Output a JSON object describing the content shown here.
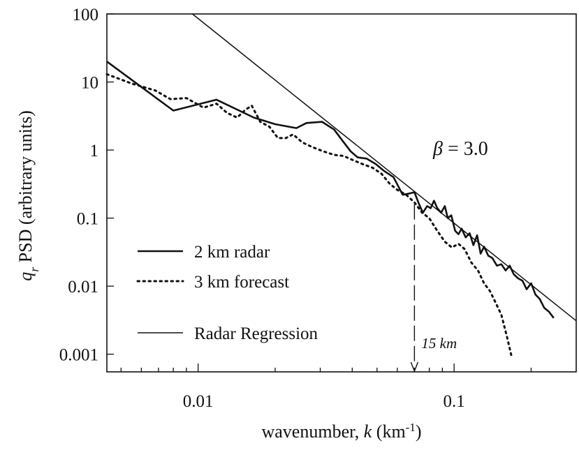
{
  "chart_data": {
    "type": "line",
    "title": "",
    "xlabel": "wavenumber, k (km-1)",
    "xlabel_parts": {
      "prefix": "wavenumber, ",
      "var": "k",
      "unit_open": " (km",
      "unit_sup": "-1",
      "unit_close": ")"
    },
    "ylabel": "qr PSD (arbitrary units)",
    "ylabel_parts": {
      "var": "q",
      "sub": "r",
      "rest": " PSD (arbitrary units)"
    },
    "x_scale": "log",
    "y_scale": "log",
    "xlim": [
      0.0044,
      0.3
    ],
    "ylim": [
      0.00055,
      100
    ],
    "x_ticks": [
      {
        "value": 0.01,
        "label": "0.01"
      },
      {
        "value": 0.1,
        "label": "0.1"
      }
    ],
    "y_ticks": [
      {
        "value": 100,
        "label": "100"
      },
      {
        "value": 10,
        "label": "10"
      },
      {
        "value": 1,
        "label": "1"
      },
      {
        "value": 0.1,
        "label": "0.1"
      },
      {
        "value": 0.01,
        "label": "0.01"
      },
      {
        "value": 0.001,
        "label": "0.001"
      }
    ],
    "grid": false,
    "legend_position": "lower-left",
    "series": [
      {
        "name": "2 km radar",
        "style": "thick-solid",
        "x": [
          0.0044,
          0.008,
          0.0118,
          0.0165,
          0.02,
          0.0242,
          0.0265,
          0.0305,
          0.034,
          0.0365,
          0.0395,
          0.042,
          0.0455,
          0.0495,
          0.053,
          0.058,
          0.063,
          0.067,
          0.07,
          0.0725,
          0.0755,
          0.0785,
          0.081,
          0.0835,
          0.086,
          0.089,
          0.092,
          0.0945,
          0.0975,
          0.101,
          0.104,
          0.107,
          0.111,
          0.115,
          0.119,
          0.123,
          0.127,
          0.131,
          0.136,
          0.141,
          0.147,
          0.153,
          0.159,
          0.165,
          0.171,
          0.178,
          0.185,
          0.192,
          0.2,
          0.208,
          0.216,
          0.225,
          0.235,
          0.245
        ],
        "y": [
          20,
          3.8,
          5.5,
          3.0,
          2.4,
          2.1,
          2.5,
          2.6,
          2.0,
          1.4,
          0.95,
          0.78,
          0.75,
          0.62,
          0.5,
          0.4,
          0.22,
          0.23,
          0.24,
          0.17,
          0.12,
          0.15,
          0.14,
          0.18,
          0.14,
          0.12,
          0.15,
          0.1,
          0.11,
          0.065,
          0.058,
          0.07,
          0.052,
          0.06,
          0.04,
          0.056,
          0.03,
          0.038,
          0.028,
          0.026,
          0.02,
          0.021,
          0.017,
          0.02,
          0.015,
          0.013,
          0.012,
          0.009,
          0.011,
          0.0075,
          0.0065,
          0.0048,
          0.0042,
          0.0034
        ]
      },
      {
        "name": "3 km forecast",
        "style": "dotted",
        "x": [
          0.0044,
          0.0055,
          0.0068,
          0.0078,
          0.009,
          0.0105,
          0.0118,
          0.013,
          0.0142,
          0.0153,
          0.0162,
          0.0175,
          0.019,
          0.0205,
          0.022,
          0.0235,
          0.0255,
          0.028,
          0.031,
          0.034,
          0.037,
          0.04,
          0.044,
          0.048,
          0.052,
          0.056,
          0.06,
          0.065,
          0.07,
          0.075,
          0.08,
          0.086,
          0.092,
          0.098,
          0.104,
          0.11,
          0.117,
          0.124,
          0.131,
          0.138,
          0.145,
          0.153,
          0.161,
          0.168
        ],
        "y": [
          13,
          9.5,
          7.5,
          5.6,
          5.8,
          4.2,
          4.8,
          3.5,
          3.0,
          3.9,
          4.5,
          2.6,
          2.2,
          1.5,
          1.5,
          1.7,
          1.3,
          1.1,
          0.95,
          0.85,
          0.82,
          0.72,
          0.62,
          0.55,
          0.45,
          0.32,
          0.26,
          0.22,
          0.17,
          0.12,
          0.1,
          0.065,
          0.045,
          0.037,
          0.042,
          0.035,
          0.022,
          0.017,
          0.011,
          0.0085,
          0.0058,
          0.0038,
          0.0018,
          0.0009
        ]
      },
      {
        "name": "Radar Regression",
        "style": "thin-solid",
        "x": [
          0.0095,
          0.3
        ],
        "y": [
          100,
          0.0031
        ]
      }
    ],
    "legend": [
      {
        "label": "2 km radar",
        "style": "thick-solid"
      },
      {
        "label": "3 km forecast",
        "style": "dotted"
      },
      {
        "label": "Radar Regression",
        "style": "thin-solid"
      }
    ],
    "annotations": {
      "beta": {
        "symbol": "β",
        "text": " = 3.0"
      },
      "cutoff": {
        "x": 0.07,
        "y_top": 0.16,
        "label": "15 km"
      }
    }
  }
}
